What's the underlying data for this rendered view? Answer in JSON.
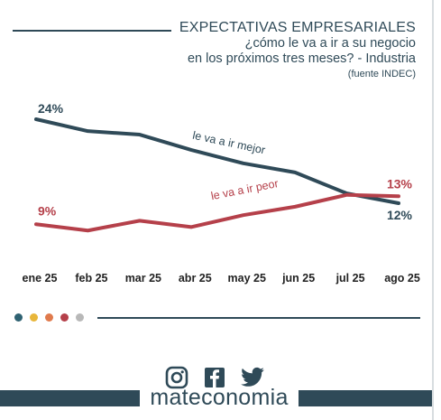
{
  "header": {
    "title": "EXPECTATIVAS EMPRESARIALES",
    "subtitle_line1": "¿cómo le va a ir a su negocio",
    "subtitle_line2": "en los próximos tres meses? - Industria",
    "source": "(fuente INDEC)"
  },
  "chart_data": {
    "type": "line",
    "categories": [
      "ene 25",
      "feb 25",
      "mar 25",
      "abr 25",
      "may 25",
      "jun 25",
      "jul 25",
      "ago 25"
    ],
    "series": [
      {
        "name": "le va a ir mejor",
        "color": "#2f4a58",
        "values": [
          24,
          22.3,
          21.8,
          19.6,
          17.7,
          16.4,
          13.4,
          12
        ],
        "labels": {
          "first": "24%",
          "last": "12%"
        }
      },
      {
        "name": "le va a ir peor",
        "color": "#b5404a",
        "values": [
          9,
          8.1,
          9.5,
          8.6,
          10.3,
          11.5,
          13.2,
          13
        ],
        "labels": {
          "first": "9%",
          "last": "13%"
        }
      }
    ],
    "ylim": [
      0,
      30
    ],
    "grid": false,
    "legend": "inline labels"
  },
  "palette_dots": [
    "#2f6272",
    "#e8b63a",
    "#e07a4c",
    "#b5404a",
    "#b8b8b8"
  ],
  "footer": {
    "brand": "mateconomia",
    "icons": [
      "instagram-icon",
      "facebook-icon",
      "twitter-icon"
    ]
  }
}
